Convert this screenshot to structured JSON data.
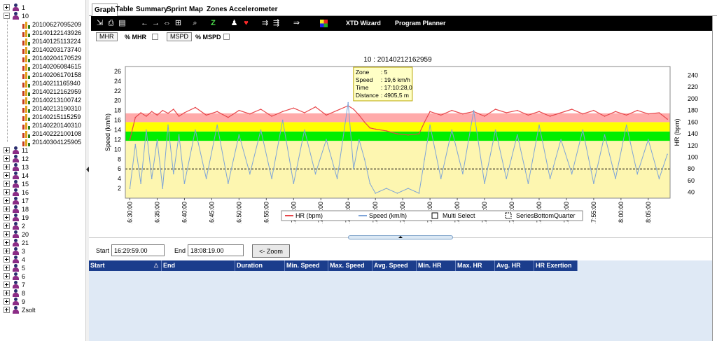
{
  "tree": {
    "items": [
      {
        "label": "1",
        "level": 0,
        "kind": "person",
        "expand": "closed"
      },
      {
        "label": "10",
        "level": 0,
        "kind": "person",
        "expand": "open"
      },
      {
        "label": "20100627095209",
        "level": 1,
        "kind": "session"
      },
      {
        "label": "20140122143926",
        "level": 1,
        "kind": "session"
      },
      {
        "label": "20140125113224",
        "level": 1,
        "kind": "session"
      },
      {
        "label": "20140203173740",
        "level": 1,
        "kind": "session"
      },
      {
        "label": "20140204170529",
        "level": 1,
        "kind": "session"
      },
      {
        "label": "20140206084615",
        "level": 1,
        "kind": "session"
      },
      {
        "label": "20140206170158",
        "level": 1,
        "kind": "session"
      },
      {
        "label": "20140211165940",
        "level": 1,
        "kind": "session"
      },
      {
        "label": "20140212162959",
        "level": 1,
        "kind": "session"
      },
      {
        "label": "20140213100742",
        "level": 1,
        "kind": "session"
      },
      {
        "label": "20140213190310",
        "level": 1,
        "kind": "session"
      },
      {
        "label": "20140215115259",
        "level": 1,
        "kind": "session"
      },
      {
        "label": "20140220140310",
        "level": 1,
        "kind": "session"
      },
      {
        "label": "20140222100108",
        "level": 1,
        "kind": "session"
      },
      {
        "label": "20140304125905",
        "level": 1,
        "kind": "session"
      },
      {
        "label": "11",
        "level": 0,
        "kind": "person",
        "expand": "closed"
      },
      {
        "label": "12",
        "level": 0,
        "kind": "person",
        "expand": "closed"
      },
      {
        "label": "13",
        "level": 0,
        "kind": "person",
        "expand": "closed"
      },
      {
        "label": "14",
        "level": 0,
        "kind": "person",
        "expand": "closed"
      },
      {
        "label": "15",
        "level": 0,
        "kind": "person",
        "expand": "closed"
      },
      {
        "label": "16",
        "level": 0,
        "kind": "person",
        "expand": "closed"
      },
      {
        "label": "17",
        "level": 0,
        "kind": "person",
        "expand": "closed"
      },
      {
        "label": "18",
        "level": 0,
        "kind": "person",
        "expand": "closed"
      },
      {
        "label": "19",
        "level": 0,
        "kind": "person",
        "expand": "closed"
      },
      {
        "label": "2",
        "level": 0,
        "kind": "person",
        "expand": "closed"
      },
      {
        "label": "20",
        "level": 0,
        "kind": "person",
        "expand": "closed"
      },
      {
        "label": "21",
        "level": 0,
        "kind": "person",
        "expand": "closed"
      },
      {
        "label": "3",
        "level": 0,
        "kind": "person",
        "expand": "closed"
      },
      {
        "label": "4",
        "level": 0,
        "kind": "person",
        "expand": "closed"
      },
      {
        "label": "5",
        "level": 0,
        "kind": "person",
        "expand": "closed"
      },
      {
        "label": "6",
        "level": 0,
        "kind": "person",
        "expand": "closed"
      },
      {
        "label": "7",
        "level": 0,
        "kind": "person",
        "expand": "closed"
      },
      {
        "label": "8",
        "level": 0,
        "kind": "person",
        "expand": "closed"
      },
      {
        "label": "9",
        "level": 0,
        "kind": "person",
        "expand": "closed"
      },
      {
        "label": "Zsolt",
        "level": 0,
        "kind": "person",
        "expand": "closed"
      }
    ]
  },
  "tabs": [
    "Graph",
    "Table",
    "Summary",
    "Sprint",
    "Map",
    "Zones",
    "Accelerometer"
  ],
  "active_tab": "Graph",
  "toolbar": {
    "icons": [
      "export-icon",
      "print-icon",
      "save-icon",
      "arrow-left-icon",
      "arrow-right-icon",
      "fit-width-icon",
      "fit-all-icon",
      "zoom-z-icon",
      "z-label-icon",
      "runner-icon",
      "heart-icon",
      "merge-icon",
      "split-icon",
      "move-right-icon",
      "xtd-wizard-icon"
    ],
    "z_label": "Z",
    "xtd_wizard": "XTD Wizard",
    "program_planner": "Program Planner"
  },
  "toggles": {
    "mhr": "MHR",
    "pct_mhr": "% MHR",
    "mspd": "MSPD",
    "pct_mspd": "% MSPD"
  },
  "chart_data": {
    "type": "line",
    "title": "10 : 20140212162959",
    "ylabel": "Speed (km/h)",
    "y2label": "HR (bpm)",
    "ylim": [
      0,
      27
    ],
    "y2lim": [
      30,
      255
    ],
    "yticks": [
      2,
      4,
      6,
      8,
      10,
      12,
      14,
      16,
      18,
      20,
      22,
      24,
      26
    ],
    "y2ticks": [
      40,
      60,
      80,
      100,
      120,
      140,
      160,
      180,
      200,
      220,
      240
    ],
    "xlim": [
      "16:29:10",
      "18:09:00"
    ],
    "xticks": [
      "16:30:00",
      "16:35:00",
      "16:40:00",
      "16:45:00",
      "16:50:00",
      "16:55:00",
      "17:00:00",
      "17:05:00",
      "17:10:00",
      "17:15:00",
      "17:20:00",
      "17:25:00",
      "17:30:00",
      "17:35:00",
      "17:40:00",
      "17:45:00",
      "17:50:00",
      "17:55:00",
      "18:00:00",
      "18:05:00"
    ],
    "zones_hr": [
      {
        "from": 0,
        "to": 128,
        "color": "#fdf6b0"
      },
      {
        "from": 128,
        "to": 144,
        "color": "#00ee00"
      },
      {
        "from": 144,
        "to": 160,
        "color": "#ffff00"
      },
      {
        "from": 160,
        "to": 175,
        "color": "#ffaaaa"
      }
    ],
    "dashed_line_hr": 80,
    "series": [
      {
        "name": "HR (bpm)",
        "color": "#e8474b",
        "points": [
          [
            "16:30:00",
            130
          ],
          [
            "16:31:00",
            168
          ],
          [
            "16:32:00",
            176
          ],
          [
            "16:33:00",
            170
          ],
          [
            "16:34:00",
            178
          ],
          [
            "16:35:00",
            172
          ],
          [
            "16:36:00",
            180
          ],
          [
            "16:37:00",
            175
          ],
          [
            "16:38:00",
            182
          ],
          [
            "16:39:00",
            170
          ],
          [
            "16:40:00",
            176
          ],
          [
            "16:42:00",
            185
          ],
          [
            "16:44:00",
            172
          ],
          [
            "16:46:00",
            178
          ],
          [
            "16:48:00",
            168
          ],
          [
            "16:50:00",
            180
          ],
          [
            "16:52:00",
            174
          ],
          [
            "16:54:00",
            182
          ],
          [
            "16:56:00",
            170
          ],
          [
            "16:58:00",
            178
          ],
          [
            "17:00:00",
            184
          ],
          [
            "17:02:00",
            176
          ],
          [
            "17:04:00",
            186
          ],
          [
            "17:06:00",
            172
          ],
          [
            "17:08:00",
            180
          ],
          [
            "17:10:00",
            188
          ],
          [
            "17:11:00",
            182
          ],
          [
            "17:12:00",
            172
          ],
          [
            "17:13:00",
            160
          ],
          [
            "17:14:00",
            150
          ],
          [
            "17:15:00",
            148
          ],
          [
            "17:17:00",
            145
          ],
          [
            "17:19:00",
            140
          ],
          [
            "17:21:00",
            138
          ],
          [
            "17:23:00",
            140
          ],
          [
            "17:24:00",
            160
          ],
          [
            "17:25:00",
            178
          ],
          [
            "17:27:00",
            172
          ],
          [
            "17:29:00",
            180
          ],
          [
            "17:31:00",
            174
          ],
          [
            "17:33:00",
            178
          ],
          [
            "17:35:00",
            170
          ],
          [
            "17:37:00",
            182
          ],
          [
            "17:39:00",
            176
          ],
          [
            "17:41:00",
            180
          ],
          [
            "17:43:00",
            172
          ],
          [
            "17:45:00",
            178
          ],
          [
            "17:47:00",
            170
          ],
          [
            "17:49:00",
            176
          ],
          [
            "17:51:00",
            182
          ],
          [
            "17:53:00",
            174
          ],
          [
            "17:55:00",
            180
          ],
          [
            "17:57:00",
            170
          ],
          [
            "17:59:00",
            178
          ],
          [
            "18:01:00",
            172
          ],
          [
            "18:03:00",
            180
          ],
          [
            "18:05:00",
            174
          ],
          [
            "18:07:00",
            176
          ],
          [
            "18:08:30",
            165
          ]
        ]
      },
      {
        "name": "Speed (km/h)",
        "color": "#7ea4d8",
        "points": [
          [
            "16:30:00",
            2
          ],
          [
            "16:31:00",
            11
          ],
          [
            "16:32:00",
            3
          ],
          [
            "16:33:00",
            14
          ],
          [
            "16:34:00",
            4
          ],
          [
            "16:35:00",
            12
          ],
          [
            "16:36:00",
            2
          ],
          [
            "16:37:00",
            15
          ],
          [
            "16:38:00",
            5
          ],
          [
            "16:39:00",
            13
          ],
          [
            "16:40:00",
            3
          ],
          [
            "16:42:00",
            14
          ],
          [
            "16:44:00",
            4
          ],
          [
            "16:46:00",
            15
          ],
          [
            "16:48:00",
            3
          ],
          [
            "16:50:00",
            13
          ],
          [
            "16:52:00",
            5
          ],
          [
            "16:54:00",
            14
          ],
          [
            "16:56:00",
            4
          ],
          [
            "16:58:00",
            16
          ],
          [
            "17:00:00",
            3
          ],
          [
            "17:02:00",
            14
          ],
          [
            "17:04:00",
            5
          ],
          [
            "17:06:00",
            12
          ],
          [
            "17:08:00",
            4
          ],
          [
            "17:10:00",
            19.6
          ],
          [
            "17:11:00",
            6
          ],
          [
            "17:12:00",
            12
          ],
          [
            "17:13:00",
            8
          ],
          [
            "17:14:00",
            3
          ],
          [
            "17:15:00",
            1
          ],
          [
            "17:17:00",
            2
          ],
          [
            "17:19:00",
            1
          ],
          [
            "17:21:00",
            2
          ],
          [
            "17:23:00",
            1
          ],
          [
            "17:24:00",
            8
          ],
          [
            "17:25:00",
            15
          ],
          [
            "17:27:00",
            4
          ],
          [
            "17:29:00",
            14
          ],
          [
            "17:31:00",
            5
          ],
          [
            "17:33:00",
            18
          ],
          [
            "17:35:00",
            3
          ],
          [
            "17:37:00",
            14
          ],
          [
            "17:39:00",
            4
          ],
          [
            "17:41:00",
            13
          ],
          [
            "17:43:00",
            3
          ],
          [
            "17:45:00",
            15
          ],
          [
            "17:47:00",
            4
          ],
          [
            "17:49:00",
            12
          ],
          [
            "17:51:00",
            5
          ],
          [
            "17:53:00",
            14
          ],
          [
            "17:55:00",
            3
          ],
          [
            "17:57:00",
            13
          ],
          [
            "17:59:00",
            4
          ],
          [
            "18:01:00",
            15
          ],
          [
            "18:03:00",
            5
          ],
          [
            "18:05:00",
            12
          ],
          [
            "18:07:00",
            4
          ],
          [
            "18:08:30",
            9
          ]
        ]
      }
    ],
    "legend": [
      {
        "label": "HR (bpm)",
        "style": "line",
        "color": "#e8474b"
      },
      {
        "label": "Speed (km/h)",
        "style": "line",
        "color": "#7ea4d8"
      },
      {
        "label": "Multi Select",
        "style": "box"
      },
      {
        "label": "SeriesBottomQuarter",
        "style": "dashed-box"
      }
    ],
    "legend_placement": "bottom",
    "tooltip": {
      "time_value": "17:10:28",
      "lines": [
        {
          "k": "Zone",
          "v": ": 5"
        },
        {
          "k": "Speed",
          "v": ": 19,6 km/h"
        },
        {
          "k": "Time",
          "v": ": 17:10:28,0"
        },
        {
          "k": "Distance",
          "v": ": 4905,5 m"
        }
      ]
    }
  },
  "range": {
    "start_label": "Start",
    "start_value": "16:29:59.00",
    "end_label": "End",
    "end_value": "18:08:19.00",
    "zoom_button": "<- Zoom"
  },
  "grid": {
    "columns": [
      "Start",
      "End",
      "Duration",
      "Min. Speed",
      "Max. Speed",
      "Avg. Speed",
      "Min. HR",
      "Max. HR",
      "Avg. HR",
      "HR Exertion"
    ],
    "sort_indicator": "△"
  }
}
